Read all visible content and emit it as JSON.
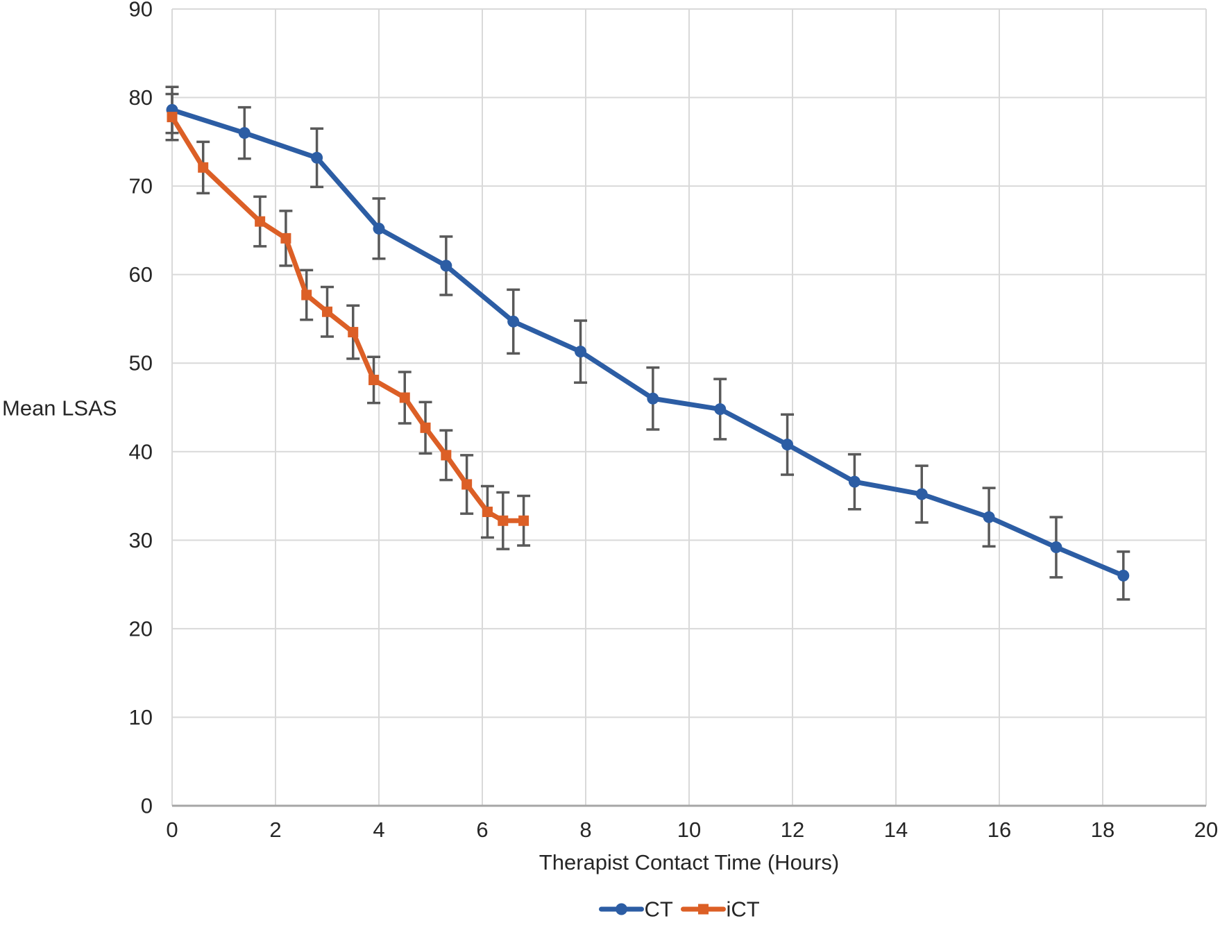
{
  "figure": {
    "background": "#FFFFFF"
  },
  "chart_data": {
    "type": "line",
    "title": "",
    "xlabel": "Therapist Contact Time (Hours)",
    "ylabel": "Mean LSAS",
    "xlim": [
      0,
      20
    ],
    "ylim": [
      0,
      90
    ],
    "xticks": [
      0,
      2,
      4,
      6,
      8,
      10,
      12,
      14,
      16,
      18,
      20
    ],
    "yticks": [
      0,
      10,
      20,
      30,
      40,
      50,
      60,
      70,
      80,
      90
    ],
    "grid": true,
    "error_bars": true,
    "legend": {
      "position": "bottom",
      "entries": [
        "CT",
        "iCT"
      ]
    },
    "series": [
      {
        "name": "CT",
        "marker": "circle",
        "color": "#2C5DA4",
        "x": [
          0,
          1.4,
          2.8,
          4.0,
          5.3,
          6.6,
          7.9,
          9.3,
          10.6,
          11.9,
          13.2,
          14.5,
          15.8,
          17.1,
          18.4
        ],
        "y": [
          78.6,
          76.0,
          73.2,
          65.2,
          61.0,
          54.7,
          51.3,
          46.0,
          44.8,
          40.8,
          36.6,
          35.2,
          32.6,
          29.2,
          26.0
        ],
        "err": [
          2.6,
          2.9,
          3.3,
          3.4,
          3.3,
          3.6,
          3.5,
          3.5,
          3.4,
          3.4,
          3.1,
          3.2,
          3.3,
          3.4,
          2.7
        ]
      },
      {
        "name": "iCT",
        "marker": "square",
        "color": "#DC5F26",
        "x": [
          0,
          0.6,
          1.7,
          2.2,
          2.6,
          3.0,
          3.5,
          3.9,
          4.5,
          4.9,
          5.3,
          5.7,
          6.1,
          6.4,
          6.8
        ],
        "y": [
          77.8,
          72.1,
          66.0,
          64.1,
          57.7,
          55.8,
          53.5,
          48.1,
          46.1,
          42.7,
          39.6,
          36.3,
          33.2,
          32.2,
          32.2
        ],
        "err": [
          2.6,
          2.9,
          2.8,
          3.1,
          2.8,
          2.8,
          3.0,
          2.6,
          2.9,
          2.9,
          2.8,
          3.3,
          2.9,
          3.2,
          2.8
        ]
      }
    ],
    "colors": {
      "gridline": "#D9D9D9",
      "axis_line": "#A6A6A6",
      "error_bar": "#595959",
      "text": "#262626"
    }
  }
}
